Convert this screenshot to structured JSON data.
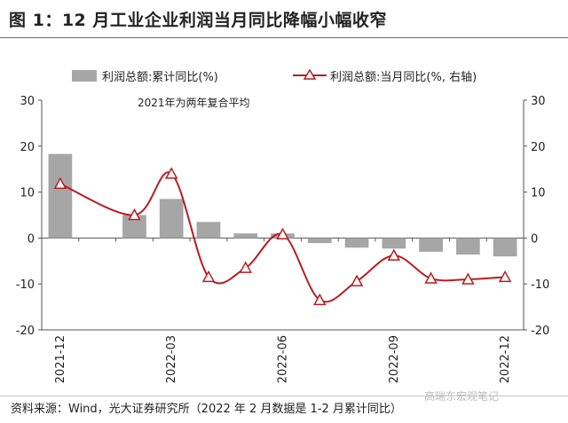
{
  "figure": {
    "title": "图 1：12 月工业企业利润当月同比降幅小幅收窄",
    "annotation": "2021年为两年复合平均",
    "source": "资料来源：Wind，光大证券研究所（2022 年 2 月数据是 1-2 月累计同比）",
    "watermark": "高瑞东宏观笔记"
  },
  "chart_data": {
    "type": "bar",
    "categories": [
      "2021-12",
      "2022-01",
      "2022-02",
      "2022-03",
      "2022-04",
      "2022-05",
      "2022-06",
      "2022-07",
      "2022-08",
      "2022-09",
      "2022-10",
      "2022-11",
      "2022-12"
    ],
    "tick_labels": [
      "2021-12",
      "2022-03",
      "2022-06",
      "2022-09",
      "2022-12"
    ],
    "left_axis": {
      "ylim": [
        -20,
        30
      ],
      "ticks": [
        "30",
        "20",
        "10",
        "0",
        "-10",
        "-20"
      ]
    },
    "right_axis": {
      "ylim": [
        -20,
        30
      ],
      "ticks": [
        "30",
        "20",
        "10",
        "0",
        "-10",
        "-20"
      ]
    },
    "legend_position": "top",
    "series": [
      {
        "name": "利润总额:累计同比(%)",
        "type": "bar",
        "axis": "left",
        "color": "#a6a6a6",
        "values": [
          18.3,
          null,
          5.0,
          8.5,
          3.5,
          1.0,
          1.0,
          -1.1,
          -2.1,
          -2.3,
          -3.0,
          -3.6,
          -4.0
        ]
      },
      {
        "name": "利润总额:当月同比(%, 右轴)",
        "type": "line",
        "axis": "right",
        "color": "#b81c22",
        "values": [
          11.8,
          null,
          5.0,
          14.0,
          -8.5,
          -6.5,
          0.8,
          -13.5,
          -9.4,
          -3.8,
          -8.8,
          -9.0,
          -8.5
        ]
      }
    ]
  }
}
